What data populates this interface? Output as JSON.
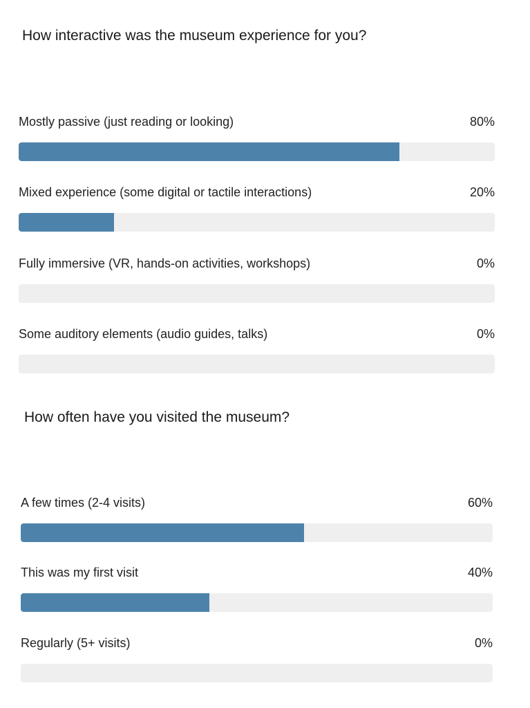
{
  "colors": {
    "bar_fill": "#4d83ab",
    "bar_track": "#efefef",
    "text": "#222222"
  },
  "polls": [
    {
      "question": "How interactive was the museum experience for you?",
      "options": [
        {
          "label": "Mostly passive (just reading or looking)",
          "percent_text": "80%",
          "fraction": 0.8
        },
        {
          "label": "Mixed experience (some digital or tactile interactions)",
          "percent_text": "20%",
          "fraction": 0.2
        },
        {
          "label": "Fully immersive (VR, hands-on activities, workshops)",
          "percent_text": "0%",
          "fraction": 0
        },
        {
          "label": "Some auditory elements (audio guides, talks)",
          "percent_text": "0%",
          "fraction": 0
        }
      ]
    },
    {
      "question": "How often have you visited the museum?",
      "options": [
        {
          "label": "A few times (2-4 visits)",
          "percent_text": "60%",
          "fraction": 0.6
        },
        {
          "label": "This was my first visit",
          "percent_text": "40%",
          "fraction": 0.4
        },
        {
          "label": "Regularly (5+ visits)",
          "percent_text": "0%",
          "fraction": 0
        }
      ]
    }
  ]
}
